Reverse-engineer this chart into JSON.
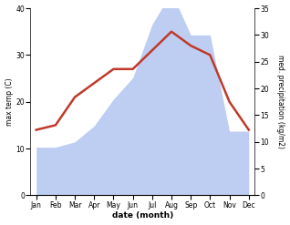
{
  "months": [
    "Jan",
    "Feb",
    "Mar",
    "Apr",
    "May",
    "Jun",
    "Jul",
    "Aug",
    "Sep",
    "Oct",
    "Nov",
    "Dec"
  ],
  "temp_max": [
    14,
    15,
    21,
    24,
    27,
    27,
    31,
    35,
    32,
    30,
    20,
    14
  ],
  "precipitation": [
    9,
    9,
    10,
    13,
    18,
    22,
    32,
    38,
    30,
    30,
    12,
    12
  ],
  "temp_ylim": [
    0,
    40
  ],
  "precip_ylim": [
    0,
    35
  ],
  "temp_color": "#c0392b",
  "precip_color": "#b3c6f0",
  "ylabel_left": "max temp (C)",
  "ylabel_right": "med. precipitation (kg/m2)",
  "xlabel": "date (month)",
  "temp_yticks": [
    0,
    10,
    20,
    30,
    40
  ],
  "precip_yticks": [
    0,
    5,
    10,
    15,
    20,
    25,
    30,
    35
  ]
}
